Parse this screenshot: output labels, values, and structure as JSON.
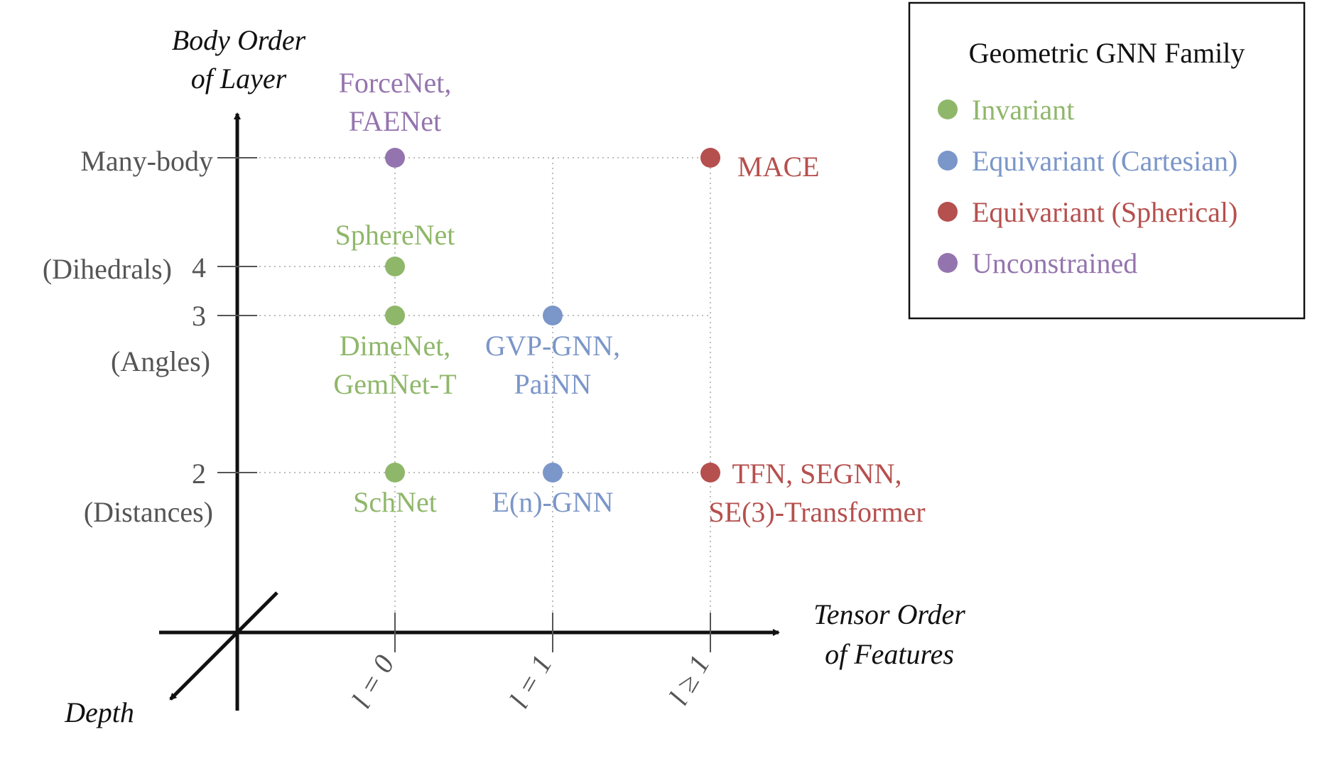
{
  "axes": {
    "y_title": [
      "Body Order",
      "of Layer"
    ],
    "x_title": [
      "Tensor Order",
      "of Features"
    ],
    "depth_title": "Depth"
  },
  "y_ticks": [
    {
      "main": "Many-body",
      "sub": ""
    },
    {
      "main": "4",
      "sub": "(Dihedrals)"
    },
    {
      "main": "3",
      "sub": "(Angles)"
    },
    {
      "main": "2",
      "sub": "(Distances)"
    }
  ],
  "x_ticks": [
    "l = 0",
    "l = 1",
    "l ≥ 1"
  ],
  "points": [
    {
      "x": 0,
      "y": 0,
      "family": "unconstrained",
      "label": [
        "ForceNet,",
        "FAENet"
      ]
    },
    {
      "x": 0,
      "y": 1,
      "family": "invariant",
      "label": [
        "SphereNet"
      ]
    },
    {
      "x": 0,
      "y": 2,
      "family": "invariant",
      "label": [
        "DimeNet,",
        "GemNet-T"
      ]
    },
    {
      "x": 0,
      "y": 3,
      "family": "invariant",
      "label": [
        "SchNet"
      ]
    },
    {
      "x": 1,
      "y": 2,
      "family": "cartesian",
      "label": [
        "GVP-GNN,",
        "PaiNN"
      ]
    },
    {
      "x": 1,
      "y": 3,
      "family": "cartesian",
      "label": [
        "E(n)-GNN"
      ]
    },
    {
      "x": 2,
      "y": 0,
      "family": "spherical",
      "label": [
        "MACE"
      ]
    },
    {
      "x": 2,
      "y": 3,
      "family": "spherical",
      "label": [
        "TFN, SEGNN,",
        "SE(3)-Transformer"
      ]
    }
  ],
  "legend": {
    "title": "Geometric GNN Family",
    "items": [
      {
        "key": "invariant",
        "label": "Invariant",
        "color": "#8fb76a"
      },
      {
        "key": "cartesian",
        "label": "Equivariant (Cartesian)",
        "color": "#7b96c8"
      },
      {
        "key": "spherical",
        "label": "Equivariant (Spherical)",
        "color": "#b5504e"
      },
      {
        "key": "unconstrained",
        "label": "Unconstrained",
        "color": "#9474ae"
      }
    ]
  }
}
